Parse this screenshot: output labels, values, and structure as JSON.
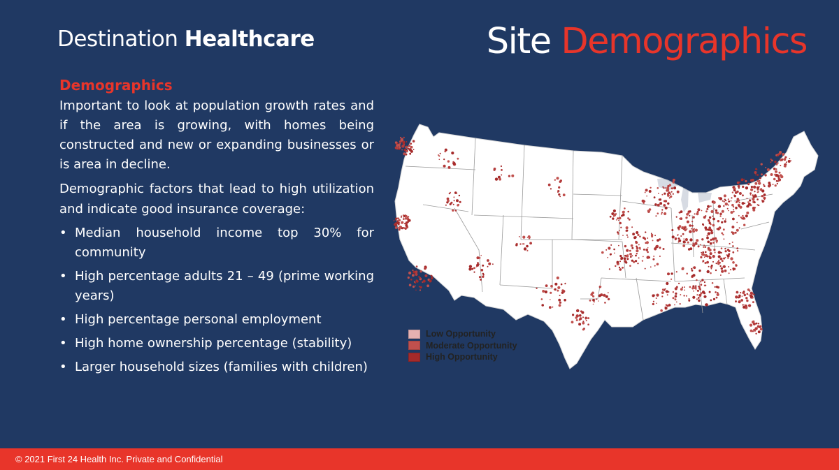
{
  "header": {
    "brand_light": "Destination",
    "brand_bold": "Healthcare",
    "title_white": "Site",
    "title_red": "Demographics"
  },
  "content": {
    "heading": "Demographics",
    "paragraph1": "Important to look at population growth rates and if the area is growing, with homes being constructed and new or expanding businesses or is area in decline.",
    "paragraph2": "Demographic factors that lead to high utilization and indicate good insurance coverage:",
    "bullets": [
      "Median household income top 30% for community",
      "High percentage adults 21 – 49 (prime working years)",
      "High percentage personal employment",
      "High home ownership percentage (stability)",
      "Larger household sizes (families with children)"
    ]
  },
  "map": {
    "legend": [
      {
        "label": "Low Opportunity",
        "color": "#e6b1b1"
      },
      {
        "label": "Moderate Opportunity",
        "color": "#c0504d"
      },
      {
        "label": "High Opportunity",
        "color": "#a52a2a"
      }
    ]
  },
  "footer": {
    "text": "© 2021  First 24 Health Inc. Private and Confidential"
  },
  "colors": {
    "background": "#203963",
    "accent": "#e8352a",
    "map_land": "#ffffff",
    "map_borders": "#9a9a9a",
    "map_dots": "#a52a2a"
  }
}
